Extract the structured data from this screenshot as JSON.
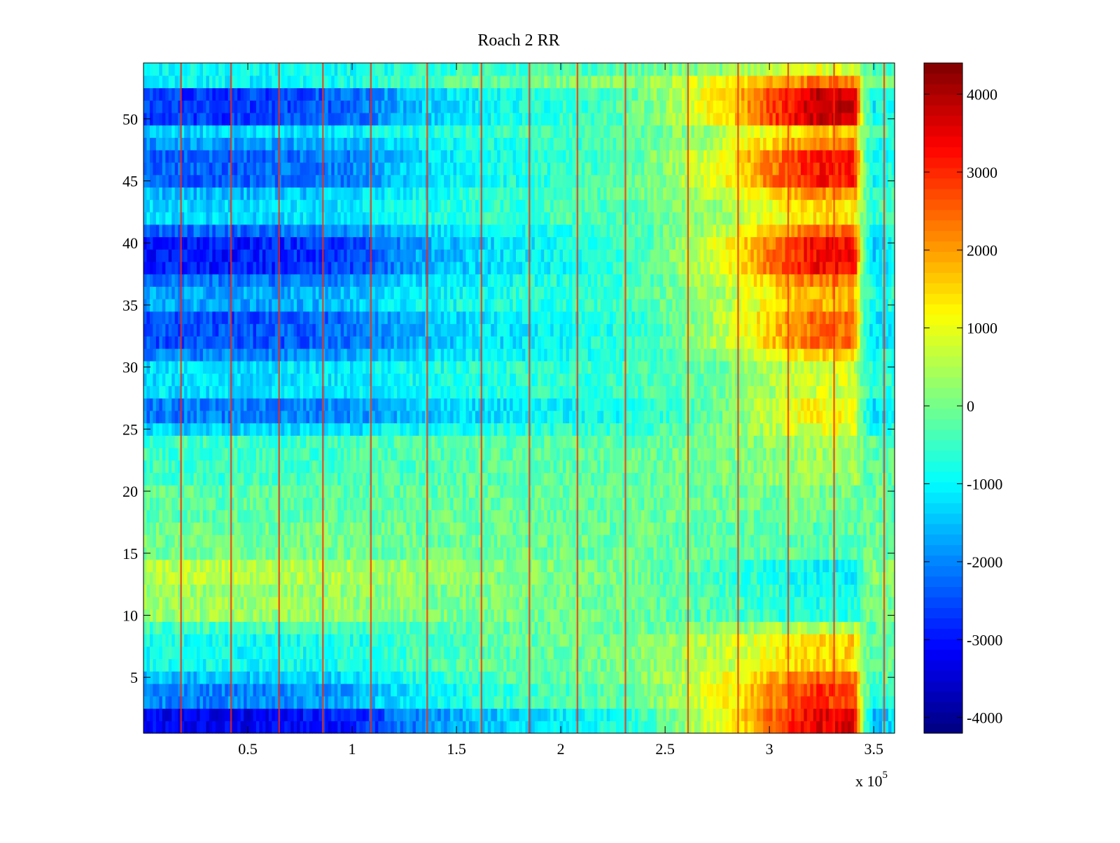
{
  "chart_data": {
    "type": "heatmap",
    "title": "Roach 2 RR",
    "xlabel": "",
    "ylabel": "",
    "x_multiplier_label": "x 10",
    "x_multiplier_exponent": "5",
    "xlim": [
      0,
      360000
    ],
    "ylim": [
      0.5,
      54.5
    ],
    "x_ticks": [
      50000,
      100000,
      150000,
      200000,
      250000,
      300000,
      350000
    ],
    "x_tick_labels": [
      "0.5",
      "1",
      "1.5",
      "2",
      "2.5",
      "3",
      "3.5"
    ],
    "y_ticks": [
      5,
      10,
      15,
      20,
      25,
      30,
      35,
      40,
      45,
      50
    ],
    "y_tick_labels": [
      "5",
      "10",
      "15",
      "20",
      "25",
      "30",
      "35",
      "40",
      "45",
      "50"
    ],
    "rows": 54,
    "colormap": "jet",
    "clim": [
      -4200,
      4400
    ],
    "colorbar_ticks": [
      -4000,
      -3000,
      -2000,
      -1000,
      0,
      1000,
      2000,
      3000,
      4000
    ],
    "colorbar_tick_labels": [
      "-4000",
      "-3000",
      "-2000",
      "-1000",
      "0",
      "1000",
      "2000",
      "3000",
      "4000"
    ],
    "grid": false,
    "x_profile": {
      "x": [
        0,
        50000,
        100000,
        130000,
        160000,
        200000,
        230000,
        245000,
        260000,
        280000,
        300000,
        320000,
        340000,
        345000,
        350000,
        360000
      ],
      "value": [
        0,
        0,
        0.15,
        0.45,
        0.62,
        0.78,
        0.9,
        1.05,
        1.25,
        1.55,
        2.0,
        2.4,
        2.6,
        1.1,
        0.6,
        0.75
      ]
    },
    "row_amplitudes": [
      {
        "rows": [
          1,
          2
        ],
        "value": -3600,
        "right_value": 3900
      },
      {
        "rows": [
          3,
          4
        ],
        "value": -2100,
        "right_value": 3200
      },
      {
        "rows": [
          5,
          5
        ],
        "value": -1500,
        "right_value": 2700
      },
      {
        "rows": [
          6,
          8
        ],
        "value": -800,
        "right_value": 1600
      },
      {
        "rows": [
          9,
          9
        ],
        "value": -300,
        "right_value": 400
      },
      {
        "rows": [
          10,
          12
        ],
        "value": 600,
        "right_value": -1100
      },
      {
        "rows": [
          13,
          14
        ],
        "value": 900,
        "right_value": -1400
      },
      {
        "rows": [
          15,
          17
        ],
        "value": 200,
        "right_value": -500
      },
      {
        "rows": [
          18,
          20
        ],
        "value": 0,
        "right_value": -200
      },
      {
        "rows": [
          21,
          24
        ],
        "value": -300,
        "right_value": 200
      },
      {
        "rows": [
          25,
          25
        ],
        "value": -1400,
        "right_value": 900
      },
      {
        "rows": [
          26,
          27
        ],
        "value": -2200,
        "right_value": 1200
      },
      {
        "rows": [
          28,
          30
        ],
        "value": -1200,
        "right_value": 700
      },
      {
        "rows": [
          31,
          31
        ],
        "value": -2100,
        "right_value": 1600
      },
      {
        "rows": [
          32,
          34
        ],
        "value": -2700,
        "right_value": 2600
      },
      {
        "rows": [
          35,
          36
        ],
        "value": -1800,
        "right_value": 1900
      },
      {
        "rows": [
          37,
          37
        ],
        "value": -2300,
        "right_value": 2500
      },
      {
        "rows": [
          38,
          40
        ],
        "value": -3200,
        "right_value": 3700
      },
      {
        "rows": [
          41,
          41
        ],
        "value": -2400,
        "right_value": 2600
      },
      {
        "rows": [
          42,
          43
        ],
        "value": -1300,
        "right_value": 1500
      },
      {
        "rows": [
          44,
          44
        ],
        "value": -1600,
        "right_value": 2200
      },
      {
        "rows": [
          45,
          47
        ],
        "value": -2500,
        "right_value": 3500
      },
      {
        "rows": [
          48,
          48
        ],
        "value": -1900,
        "right_value": 2400
      },
      {
        "rows": [
          49,
          49
        ],
        "value": -1300,
        "right_value": 1700
      },
      {
        "rows": [
          50,
          52
        ],
        "value": -2900,
        "right_value": 4200
      },
      {
        "rows": [
          53,
          53
        ],
        "value": -1000,
        "right_value": 2600
      },
      {
        "rows": [
          54,
          54
        ],
        "value": -900,
        "right_value": 900
      }
    ],
    "vertical_stripes_x": [
      18000,
      42000,
      65000,
      86000,
      109000,
      136000,
      162000,
      185000,
      208000,
      231000,
      261000,
      285000,
      309000,
      331000,
      355000
    ],
    "vertical_stripe_value": 3000
  }
}
